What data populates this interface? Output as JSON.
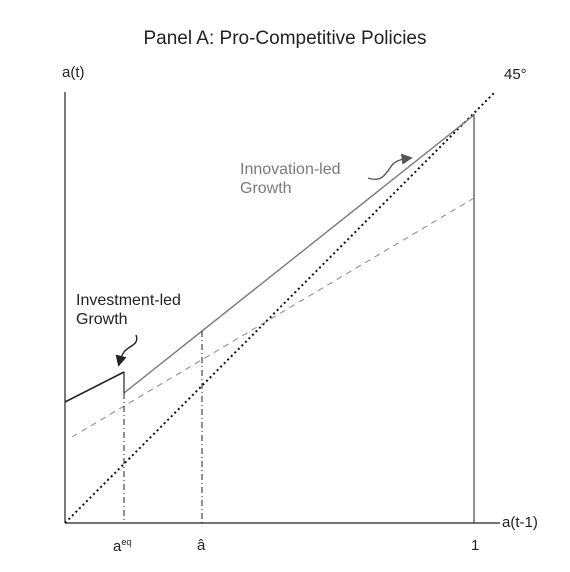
{
  "title": "Panel A: Pro-Competitive Policies",
  "axes": {
    "y_label": "a(t)",
    "x_label": "a(t-1)",
    "diagonal_label": "45°",
    "ticks": {
      "a_eq_base": "a",
      "a_eq_sup": "eq",
      "a_hat": "â",
      "one": "1"
    }
  },
  "annotations": {
    "innovation_line1": "Innovation-led",
    "innovation_line2": "Growth",
    "investment_line1": "Investment-led",
    "investment_line2": "Growth"
  },
  "colors": {
    "axis": "#222222",
    "innovation_line": "#7a7a7a",
    "investment_line": "#222222",
    "dashed_line": "#888888",
    "diagonal": "#111111"
  }
}
